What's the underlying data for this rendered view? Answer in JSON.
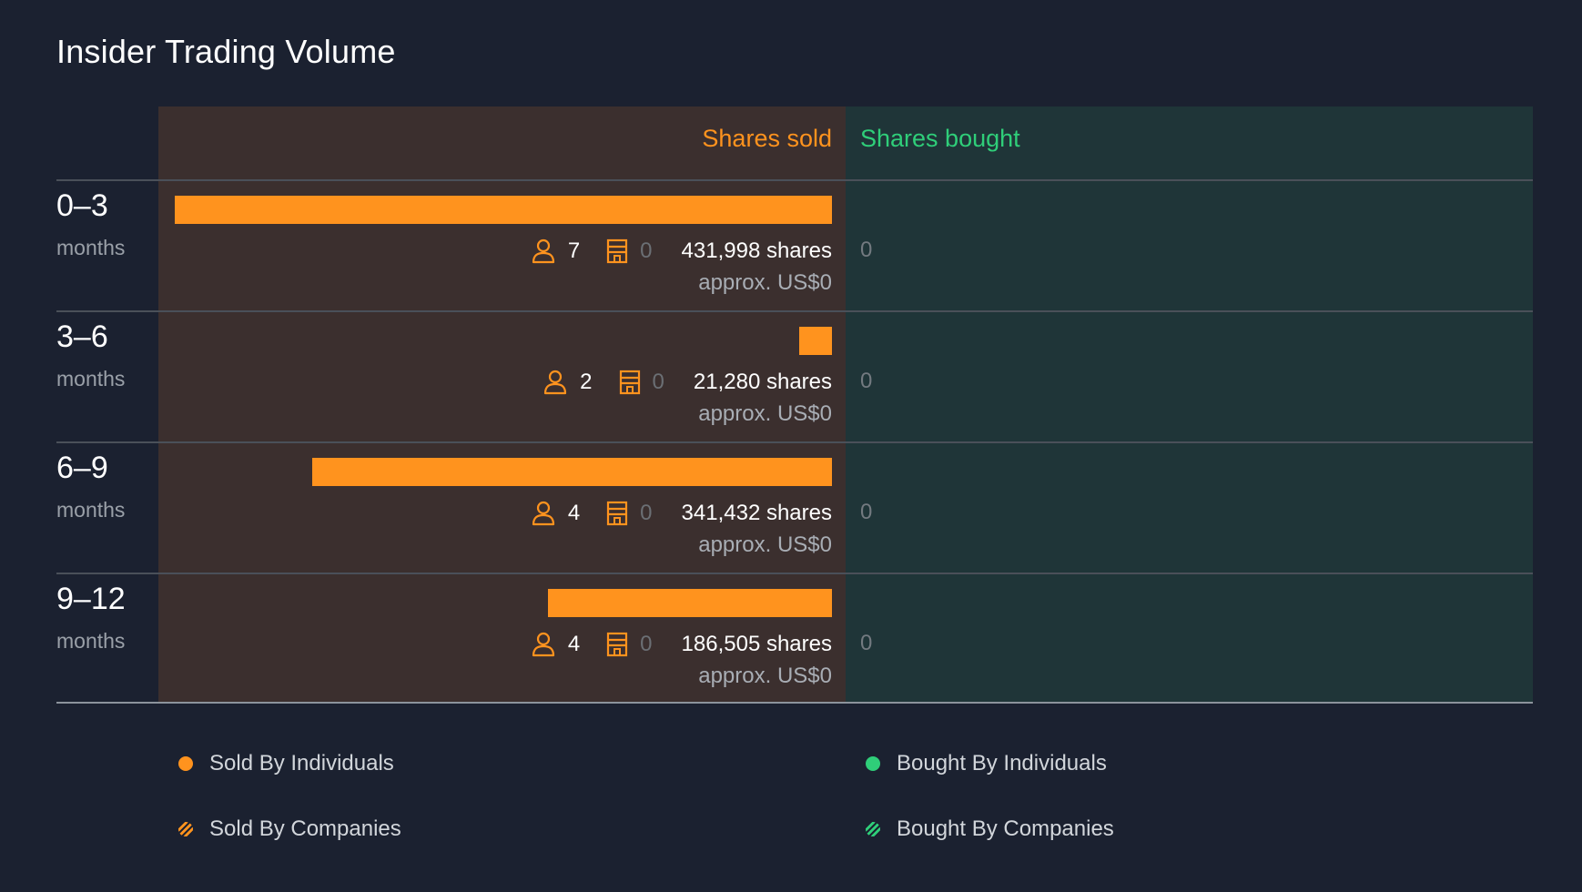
{
  "title": "Insider Trading Volume",
  "colors": {
    "sold": "#ff931e",
    "bought": "#2fce79"
  },
  "chart_data": {
    "type": "bar",
    "title": "Insider Trading Volume",
    "column_headers": {
      "sold": "Shares sold",
      "bought": "Shares bought"
    },
    "categories": [
      "0–3",
      "3–6",
      "6–9",
      "9–12"
    ],
    "category_unit": "months",
    "series": [
      {
        "name": "Shares sold",
        "values": [
          431998,
          21280,
          341432,
          186505
        ],
        "labels": [
          "431,998 shares",
          "21,280 shares",
          "341,432 shares",
          "186,505 shares"
        ],
        "individuals": [
          7,
          2,
          4,
          4
        ],
        "companies": [
          0,
          0,
          0,
          0
        ],
        "approx_value": [
          "approx. US$0",
          "approx. US$0",
          "approx. US$0",
          "approx. US$0"
        ]
      },
      {
        "name": "Shares bought",
        "values": [
          0,
          0,
          0,
          0
        ],
        "labels": [
          "0",
          "0",
          "0",
          "0"
        ]
      }
    ],
    "xlim": [
      0,
      431998
    ],
    "legend": {
      "placement": "bottom",
      "items": [
        {
          "label": "Sold By Individuals",
          "style": "solid",
          "color": "#ff931e"
        },
        {
          "label": "Bought By Individuals",
          "style": "solid",
          "color": "#2fce79"
        },
        {
          "label": "Sold By Companies",
          "style": "hatched",
          "color": "#ff931e"
        },
        {
          "label": "Bought By Companies",
          "style": "hatched",
          "color": "#2fce79"
        }
      ]
    }
  }
}
